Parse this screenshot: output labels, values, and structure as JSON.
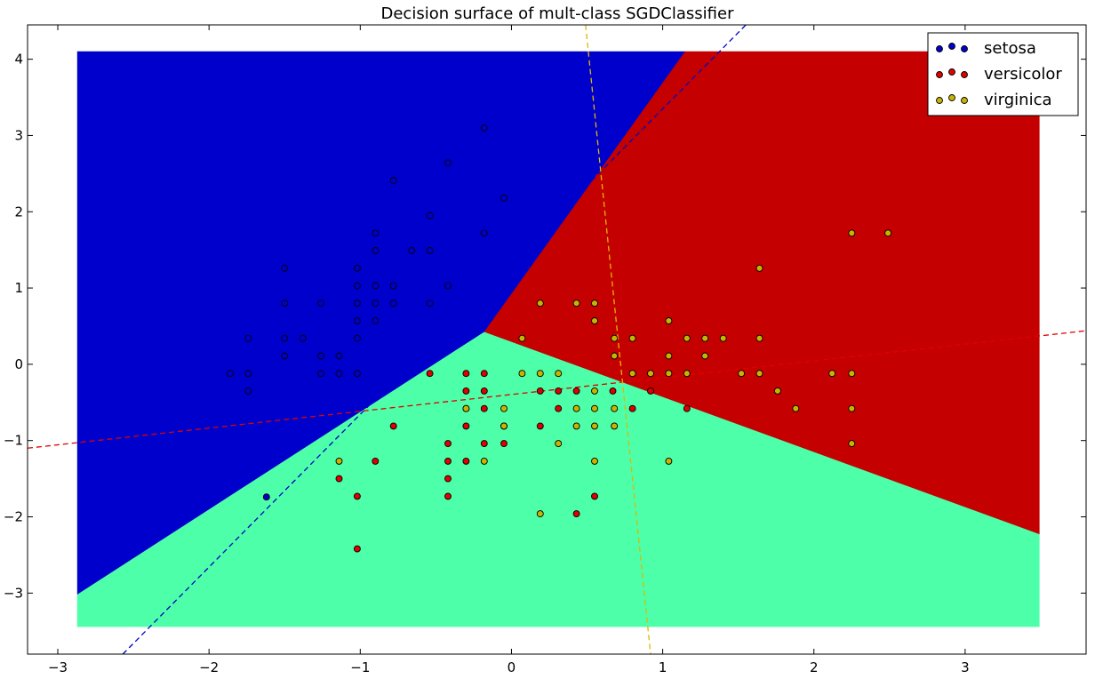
{
  "chart_data": {
    "type": "scatter",
    "title": "Decision surface of mult-class SGDClassifier",
    "xlim": [
      -3.2,
      3.8
    ],
    "ylim": [
      -3.8,
      4.45
    ],
    "xticks": [
      -3,
      -2,
      -1,
      0,
      1,
      2,
      3
    ],
    "yticks": [
      -3,
      -2,
      -1,
      0,
      1,
      2,
      3,
      4
    ],
    "xtick_labels": [
      "−3",
      "−2",
      "−1",
      "0",
      "1",
      "2",
      "3"
    ],
    "ytick_labels": [
      "−3",
      "−2",
      "−1",
      "0",
      "1",
      "2",
      "3",
      "4"
    ],
    "grid": false,
    "legend_position": "top-right",
    "surface": {
      "x_range": [
        -2.87,
        3.49
      ],
      "y_range": [
        -3.44,
        4.1
      ],
      "regions": [
        {
          "class": "setosa",
          "color": "#0000cc",
          "polygon": [
            [
              -2.87,
              4.1
            ],
            [
              1.15,
              4.1
            ],
            [
              -0.18,
              0.42
            ],
            [
              -2.87,
              -3.02
            ]
          ]
        },
        {
          "class": "versicolor",
          "color": "#c40000",
          "polygon": [
            [
              1.15,
              4.1
            ],
            [
              3.49,
              4.1
            ],
            [
              3.49,
              -2.23
            ],
            [
              -0.18,
              0.42
            ]
          ]
        },
        {
          "class": "virginica",
          "color": "#4cffa8",
          "polygon": [
            [
              -2.87,
              -3.02
            ],
            [
              -0.18,
              0.42
            ],
            [
              3.49,
              -2.23
            ],
            [
              3.49,
              -3.44
            ],
            [
              -2.87,
              -3.44
            ]
          ]
        }
      ]
    },
    "lines": [
      {
        "class": "setosa",
        "color": "#0000cc",
        "x": [
          -2.57,
          1.55
        ],
        "y": [
          -3.8,
          4.45
        ]
      },
      {
        "class": "versicolor",
        "color": "#e00000",
        "x": [
          -3.2,
          3.8
        ],
        "y": [
          -1.1,
          0.44
        ]
      },
      {
        "class": "virginica",
        "color": "#e0b800",
        "x": [
          0.49,
          0.92
        ],
        "y": [
          4.45,
          -3.8
        ]
      }
    ],
    "series": [
      {
        "name": "setosa",
        "color": "#0000cc",
        "points": [
          [
            -1.02,
            1.26
          ],
          [
            -1.02,
            1.03
          ],
          [
            -1.02,
            0.8
          ],
          [
            -1.02,
            0.57
          ],
          [
            -1.02,
            0.34
          ],
          [
            -1.02,
            -0.12
          ],
          [
            -0.9,
            1.72
          ],
          [
            -0.9,
            1.49
          ],
          [
            -0.9,
            1.03
          ],
          [
            -0.9,
            0.8
          ],
          [
            -0.9,
            0.57
          ],
          [
            -0.78,
            2.41
          ],
          [
            -0.78,
            1.03
          ],
          [
            -0.78,
            0.8
          ],
          [
            -0.66,
            1.49
          ],
          [
            -0.54,
            1.95
          ],
          [
            -0.54,
            1.49
          ],
          [
            -0.54,
            0.8
          ],
          [
            -0.42,
            2.64
          ],
          [
            -0.42,
            1.03
          ],
          [
            -0.18,
            3.1
          ],
          [
            -0.18,
            1.72
          ],
          [
            -0.05,
            2.18
          ],
          [
            -1.5,
            1.26
          ],
          [
            -1.5,
            0.8
          ],
          [
            -1.5,
            0.34
          ],
          [
            -1.5,
            0.11
          ],
          [
            -1.26,
            0.8
          ],
          [
            -1.26,
            0.11
          ],
          [
            -1.26,
            -0.12
          ],
          [
            -1.14,
            0.11
          ],
          [
            -1.14,
            -0.12
          ],
          [
            -1.38,
            0.34
          ],
          [
            -1.74,
            0.34
          ],
          [
            -1.74,
            -0.12
          ],
          [
            -1.74,
            -0.35
          ],
          [
            -1.86,
            -0.12
          ],
          [
            -1.62,
            -1.74
          ]
        ]
      },
      {
        "name": "versicolor",
        "color": "#e00000",
        "points": [
          [
            -0.3,
            -0.12
          ],
          [
            -0.3,
            -0.35
          ],
          [
            -0.3,
            -0.58
          ],
          [
            -0.3,
            -0.81
          ],
          [
            -0.3,
            -1.27
          ],
          [
            -0.18,
            -0.12
          ],
          [
            -0.18,
            -0.35
          ],
          [
            -0.18,
            -0.58
          ],
          [
            -0.18,
            -1.04
          ],
          [
            -0.42,
            -1.04
          ],
          [
            -0.42,
            -1.27
          ],
          [
            -0.42,
            -1.5
          ],
          [
            -0.42,
            -1.73
          ],
          [
            -0.05,
            -0.81
          ],
          [
            -0.05,
            -1.04
          ],
          [
            0.19,
            -0.35
          ],
          [
            0.19,
            -0.81
          ],
          [
            0.31,
            -0.35
          ],
          [
            0.31,
            -0.58
          ],
          [
            0.43,
            -0.35
          ],
          [
            0.43,
            -1.96
          ],
          [
            0.55,
            -1.73
          ],
          [
            0.67,
            -0.35
          ],
          [
            0.8,
            -0.58
          ],
          [
            0.92,
            -0.35
          ],
          [
            1.16,
            -0.58
          ],
          [
            -0.54,
            -0.12
          ],
          [
            -0.78,
            -0.81
          ],
          [
            -0.9,
            -1.27
          ],
          [
            -1.02,
            -1.73
          ],
          [
            -1.02,
            -2.42
          ],
          [
            -1.14,
            -1.5
          ]
        ]
      },
      {
        "name": "virginica",
        "color": "#c8b400",
        "points": [
          [
            2.25,
            1.72
          ],
          [
            2.49,
            1.72
          ],
          [
            1.64,
            1.26
          ],
          [
            1.64,
            0.34
          ],
          [
            1.64,
            -0.12
          ],
          [
            1.76,
            -0.35
          ],
          [
            1.88,
            -0.58
          ],
          [
            2.12,
            -0.12
          ],
          [
            2.25,
            -0.12
          ],
          [
            2.25,
            -0.58
          ],
          [
            2.25,
            -1.04
          ],
          [
            1.52,
            -0.12
          ],
          [
            1.4,
            0.34
          ],
          [
            1.28,
            0.34
          ],
          [
            1.28,
            0.11
          ],
          [
            1.16,
            0.34
          ],
          [
            1.16,
            -0.12
          ],
          [
            1.04,
            0.57
          ],
          [
            1.04,
            0.11
          ],
          [
            1.04,
            -0.12
          ],
          [
            1.04,
            -1.27
          ],
          [
            0.92,
            -0.12
          ],
          [
            0.8,
            0.34
          ],
          [
            0.8,
            -0.12
          ],
          [
            0.68,
            0.34
          ],
          [
            0.68,
            0.11
          ],
          [
            0.68,
            -0.58
          ],
          [
            0.68,
            -0.81
          ],
          [
            0.55,
            0.8
          ],
          [
            0.55,
            0.57
          ],
          [
            0.55,
            -0.35
          ],
          [
            0.55,
            -0.58
          ],
          [
            0.55,
            -0.81
          ],
          [
            0.55,
            -1.27
          ],
          [
            0.43,
            0.8
          ],
          [
            0.43,
            -0.58
          ],
          [
            0.43,
            -0.81
          ],
          [
            0.31,
            -0.12
          ],
          [
            0.31,
            -1.04
          ],
          [
            0.19,
            0.8
          ],
          [
            0.19,
            -0.12
          ],
          [
            0.19,
            -1.96
          ],
          [
            0.07,
            0.34
          ],
          [
            0.07,
            -0.12
          ],
          [
            -0.05,
            -0.58
          ],
          [
            -0.05,
            -0.81
          ],
          [
            -0.3,
            -0.58
          ],
          [
            -0.18,
            -1.27
          ],
          [
            -1.14,
            -1.27
          ]
        ]
      }
    ]
  }
}
